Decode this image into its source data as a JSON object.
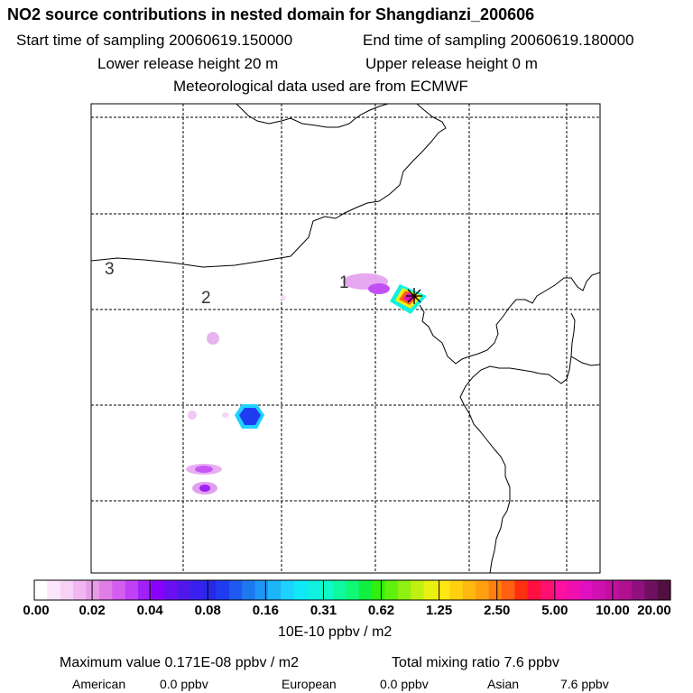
{
  "header": {
    "title": "NO2 source contributions in nested domain for Shangdianzi_200606",
    "start_time": "Start time of sampling 20060619.150000",
    "end_time": "End time of sampling 20060619.180000",
    "lower_height": "Lower release height   20 m",
    "upper_height": "Upper release height    0 m",
    "met": "Meteorological data used are from ECMWF"
  },
  "map": {
    "region_labels": [
      "1",
      "2",
      "3"
    ],
    "station_marker": "star-marker"
  },
  "colorbar": {
    "labels": [
      "0.00",
      "0.02",
      "0.04",
      "0.08",
      "0.16",
      "0.31",
      "0.62",
      "1.25",
      "2.50",
      "5.00",
      "10.00",
      "20.00"
    ],
    "units": "10E-10 ppbv / m2",
    "colors": [
      "#ffffff",
      "#fbe6fb",
      "#f6d2f6",
      "#f0b6f0",
      "#e89ce8",
      "#e07ee8",
      "#d35ef0",
      "#c040f5",
      "#a020f8",
      "#8a00ff",
      "#6a10f0",
      "#5018e8",
      "#3a20f0",
      "#2828e8",
      "#1e3cf0",
      "#1e5af0",
      "#1e78f0",
      "#1e96f5",
      "#1eb4f8",
      "#1ed2ff",
      "#10e8f8",
      "#10f0e0",
      "#10f8c8",
      "#10f8a0",
      "#10f878",
      "#10f040",
      "#30f010",
      "#60f010",
      "#90f010",
      "#c0f010",
      "#e8f010",
      "#ffe810",
      "#ffd010",
      "#ffb810",
      "#ffa010",
      "#ff8010",
      "#ff6010",
      "#ff3010",
      "#ff1040",
      "#ff1070",
      "#ff10a0",
      "#f010b0",
      "#e010c0",
      "#d010b0",
      "#c010a0",
      "#b01090",
      "#901080",
      "#701060",
      "#501040"
    ]
  },
  "footer": {
    "max_value": "Maximum value  0.171E-08 ppbv / m2",
    "total": "Total mixing ratio      7.6 ppbv",
    "american_label": "American",
    "american_value": "0.0 ppbv",
    "european_label": "European",
    "european_value": "0.0 ppbv",
    "asian_label": "Asian",
    "asian_value": "7.6 ppbv"
  }
}
